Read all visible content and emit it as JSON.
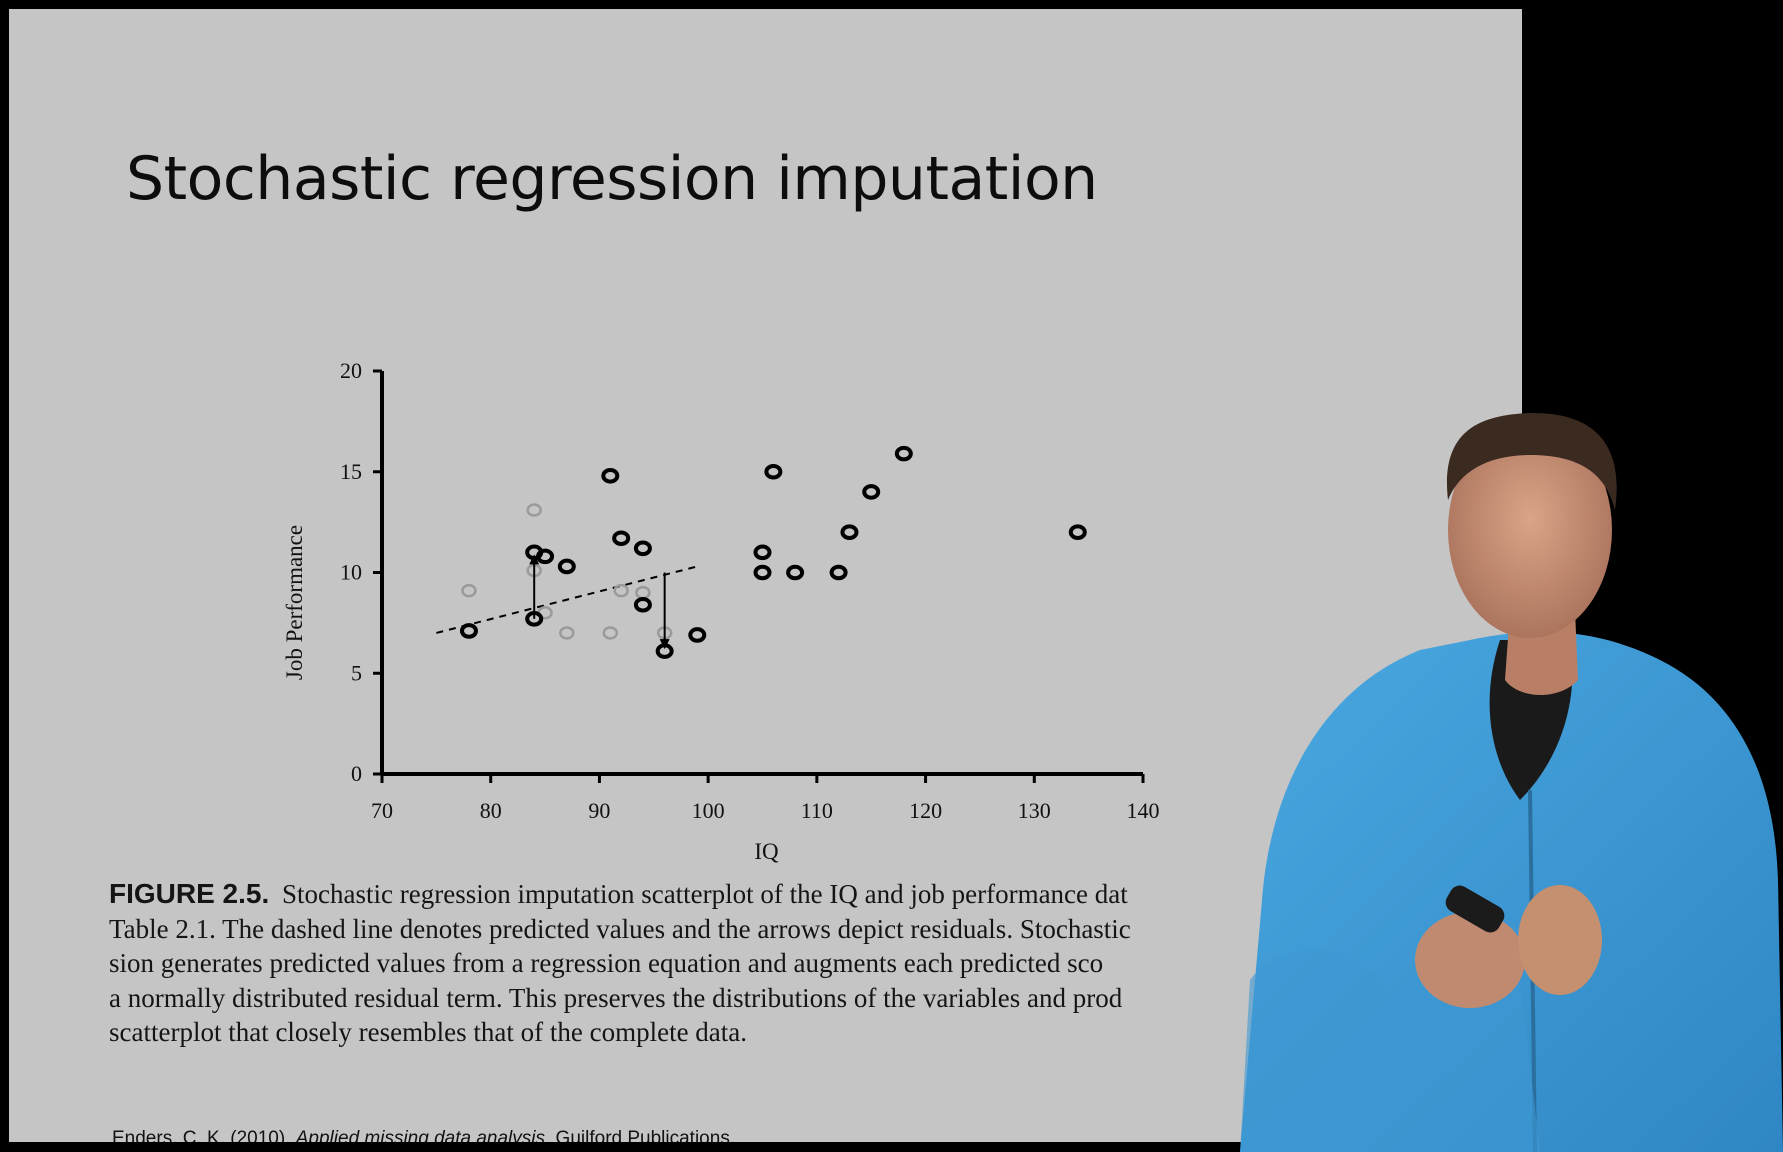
{
  "slide": {
    "title": "Stochastic regression imputation",
    "caption": {
      "figure_label": "FIGURE 2.5.",
      "lines": [
        "Stochastic regression imputation scatterplot of the IQ and job performance dat",
        "Table 2.1. The dashed line denotes predicted values and the arrows depict residuals. Stochastic",
        "sion generates predicted values from a regression equation and augments each predicted sco",
        "a normally distributed residual term. This preserves the distributions of the variables and prod",
        "scatterplot that closely resembles that of the complete data."
      ]
    },
    "citation": {
      "prefix": "Enders, C. K. (2010). ",
      "title": "Applied missing data analysis",
      "suffix": ". Guilford Publications."
    }
  },
  "chart_data": {
    "type": "scatter",
    "xlabel": "IQ",
    "ylabel": "Job Performance",
    "xlim": [
      70,
      140
    ],
    "ylim": [
      0,
      20
    ],
    "x_ticks": [
      "70",
      "80",
      "90",
      "100",
      "110",
      "120",
      "130",
      "140"
    ],
    "y_ticks": [
      "0",
      "5",
      "10",
      "15",
      "20"
    ],
    "grid": false,
    "series": [
      {
        "style": "black",
        "points": [
          [
            78,
            7.1
          ],
          [
            84,
            11.0
          ],
          [
            85,
            10.8
          ],
          [
            84,
            7.7
          ],
          [
            87,
            10.3
          ],
          [
            91,
            14.8
          ],
          [
            92,
            11.7
          ],
          [
            94,
            11.2
          ],
          [
            94,
            8.4
          ],
          [
            96,
            6.1
          ],
          [
            99,
            6.9
          ],
          [
            105,
            11.0
          ],
          [
            105,
            10.0
          ],
          [
            106,
            15.0
          ],
          [
            108,
            10.0
          ],
          [
            112,
            10.0
          ],
          [
            113,
            12.0
          ],
          [
            115,
            14.0
          ],
          [
            118,
            15.9
          ],
          [
            134,
            12.0
          ]
        ]
      },
      {
        "style": "gray",
        "points": [
          [
            78,
            9.1
          ],
          [
            84,
            13.1
          ],
          [
            84,
            10.1
          ],
          [
            85,
            8.0
          ],
          [
            87,
            7.0
          ],
          [
            91,
            7.0
          ],
          [
            92,
            9.1
          ],
          [
            94,
            9.0
          ],
          [
            96,
            7.0
          ]
        ]
      }
    ],
    "regression_line": {
      "style": "dashed",
      "from": [
        75,
        7.0
      ],
      "to": [
        99,
        10.3
      ]
    },
    "residual_arrows": [
      {
        "x": 84,
        "from": 7.7,
        "to": 10.9
      },
      {
        "x": 96,
        "from": 10.0,
        "to": 6.2
      }
    ],
    "colors": {
      "observed": "#000000",
      "imputed": "#9a9a9a"
    }
  }
}
